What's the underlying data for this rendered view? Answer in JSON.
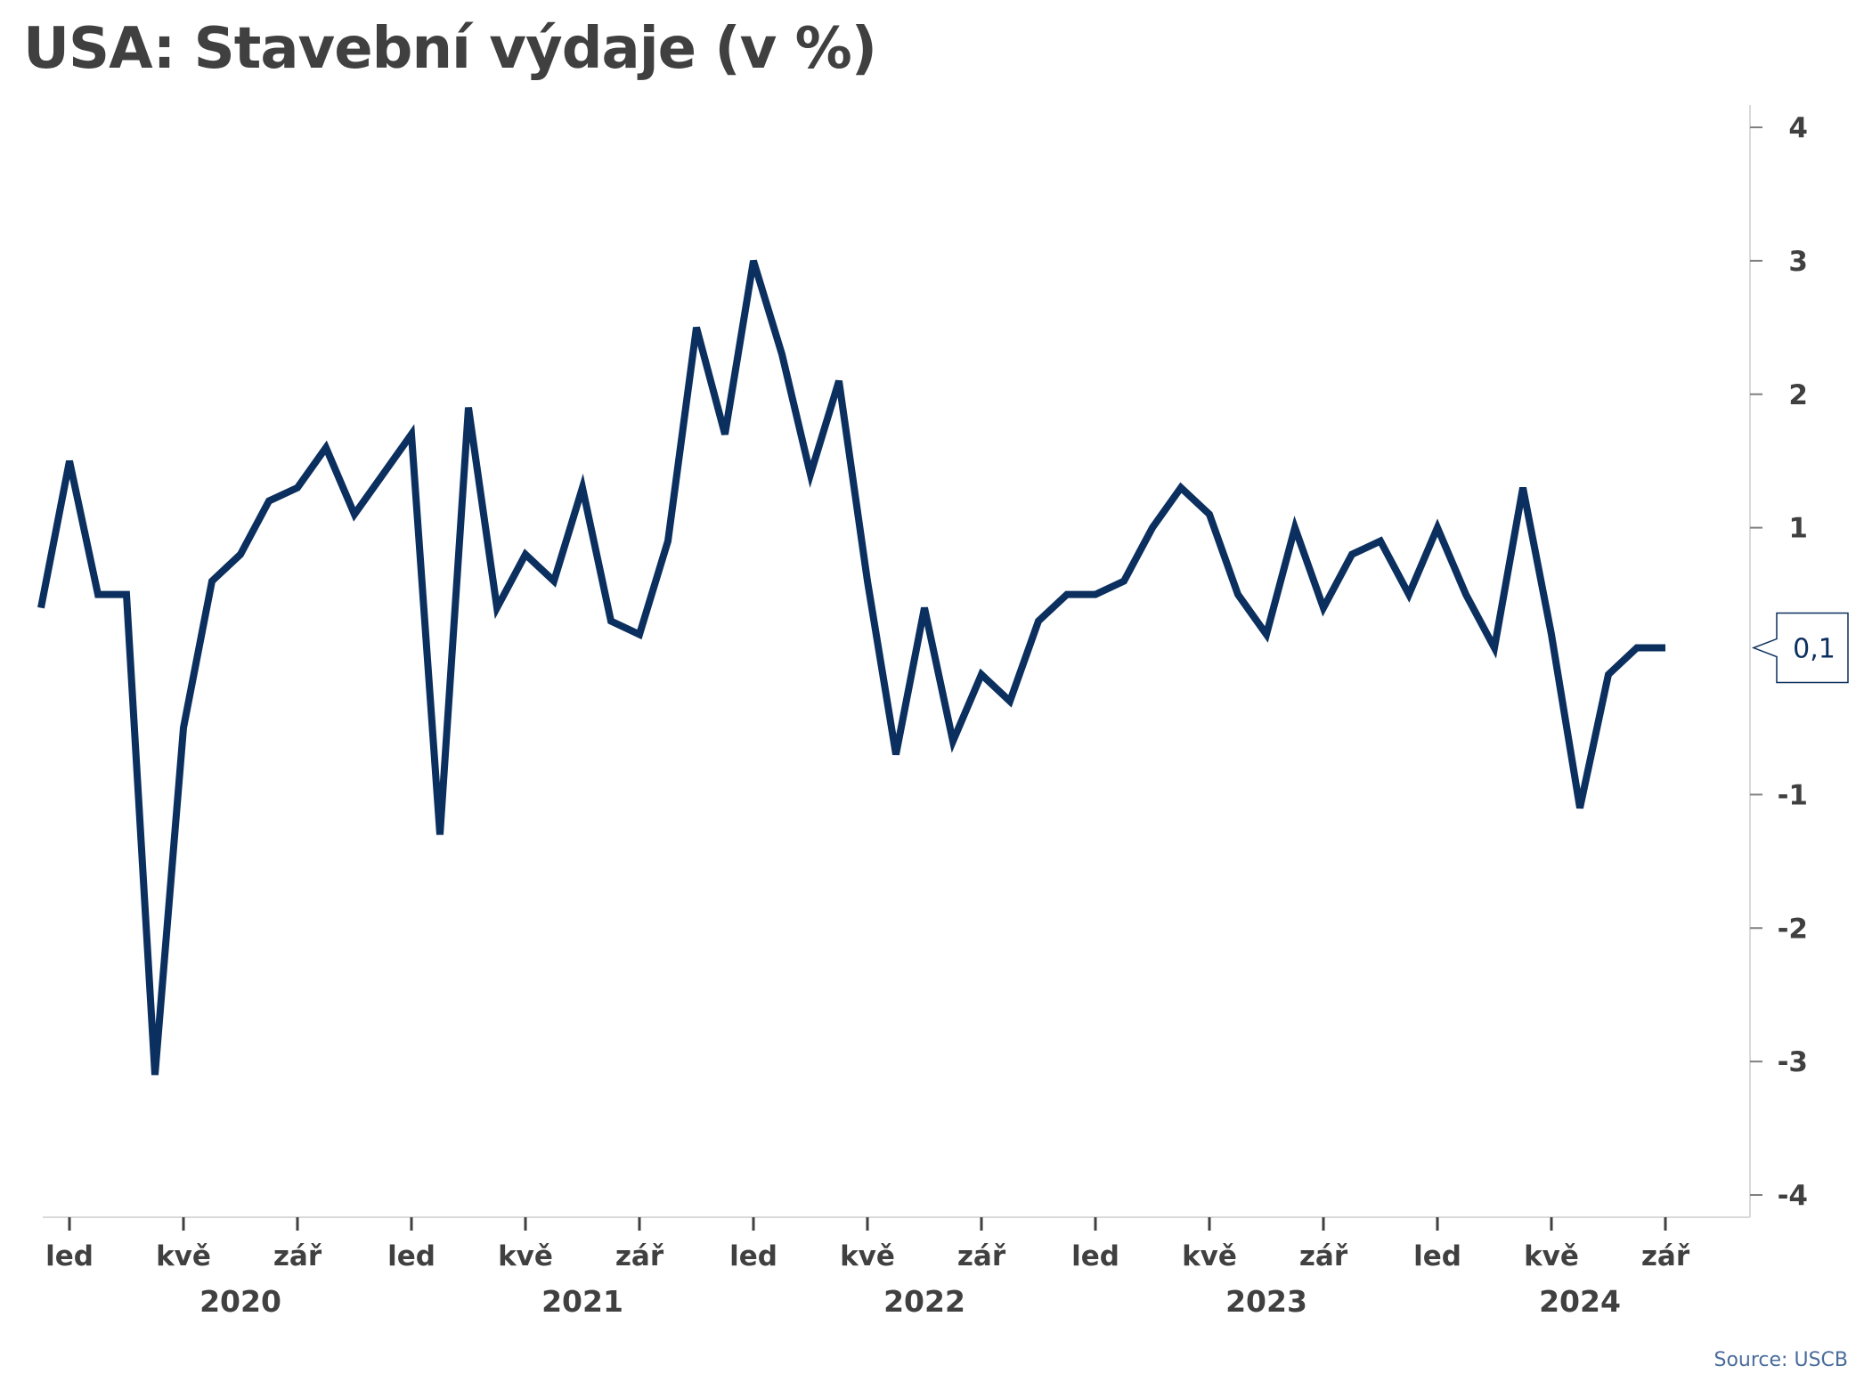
{
  "title": "USA: Stavební výdaje (v %)",
  "source": "Source: USCB",
  "colors": {
    "line": "#0b2f5e",
    "text": "#404040",
    "axis": "#d9d9d9",
    "source": "#4a6c9b"
  },
  "chart_data": {
    "type": "line",
    "title": "USA: Stavební výdaje (v %)",
    "xlabel": "",
    "ylabel": "",
    "ylim": [
      -4,
      4
    ],
    "y_ticks": [
      4,
      3,
      2,
      1,
      -1,
      -2,
      -3,
      -4
    ],
    "y_axis_side": "right",
    "grid": false,
    "x_start": "2019-12",
    "x_end": "2024-09",
    "x_tick_labels": [
      {
        "month": "2020-01",
        "label": "led"
      },
      {
        "month": "2020-05",
        "label": "kvě"
      },
      {
        "month": "2020-09",
        "label": "zář"
      },
      {
        "month": "2021-01",
        "label": "led"
      },
      {
        "month": "2021-05",
        "label": "kvě"
      },
      {
        "month": "2021-09",
        "label": "zář"
      },
      {
        "month": "2022-01",
        "label": "led"
      },
      {
        "month": "2022-05",
        "label": "kvě"
      },
      {
        "month": "2022-09",
        "label": "zář"
      },
      {
        "month": "2023-01",
        "label": "led"
      },
      {
        "month": "2023-05",
        "label": "kvě"
      },
      {
        "month": "2023-09",
        "label": "zář"
      },
      {
        "month": "2024-01",
        "label": "led"
      },
      {
        "month": "2024-05",
        "label": "kvě"
      },
      {
        "month": "2024-09",
        "label": "zář"
      }
    ],
    "year_labels": [
      {
        "label": "2020",
        "month": "2020-07"
      },
      {
        "label": "2021",
        "month": "2021-07"
      },
      {
        "label": "2022",
        "month": "2022-07"
      },
      {
        "label": "2023",
        "month": "2023-07"
      },
      {
        "label": "2024",
        "month": "2024-06"
      }
    ],
    "series": [
      {
        "values": [
          {
            "x": "2019-12",
            "y": 0.4
          },
          {
            "x": "2020-01",
            "y": 1.5
          },
          {
            "x": "2020-02",
            "y": 0.5
          },
          {
            "x": "2020-03",
            "y": 0.5
          },
          {
            "x": "2020-04",
            "y": -3.1
          },
          {
            "x": "2020-05",
            "y": -0.5
          },
          {
            "x": "2020-06",
            "y": 0.6
          },
          {
            "x": "2020-07",
            "y": 0.8
          },
          {
            "x": "2020-08",
            "y": 1.2
          },
          {
            "x": "2020-09",
            "y": 1.3
          },
          {
            "x": "2020-10",
            "y": 1.6
          },
          {
            "x": "2020-11",
            "y": 1.1
          },
          {
            "x": "2020-12",
            "y": 1.4
          },
          {
            "x": "2021-01",
            "y": 1.7
          },
          {
            "x": "2021-02",
            "y": -1.3
          },
          {
            "x": "2021-03",
            "y": 1.9
          },
          {
            "x": "2021-04",
            "y": 0.4
          },
          {
            "x": "2021-05",
            "y": 0.8
          },
          {
            "x": "2021-06",
            "y": 0.6
          },
          {
            "x": "2021-07",
            "y": 1.3
          },
          {
            "x": "2021-08",
            "y": 0.3
          },
          {
            "x": "2021-09",
            "y": 0.2
          },
          {
            "x": "2021-10",
            "y": 0.9
          },
          {
            "x": "2021-11",
            "y": 2.5
          },
          {
            "x": "2021-12",
            "y": 1.7
          },
          {
            "x": "2022-01",
            "y": 3.0
          },
          {
            "x": "2022-02",
            "y": 2.3
          },
          {
            "x": "2022-03",
            "y": 1.4
          },
          {
            "x": "2022-04",
            "y": 2.1
          },
          {
            "x": "2022-05",
            "y": 0.6
          },
          {
            "x": "2022-06",
            "y": -0.7
          },
          {
            "x": "2022-07",
            "y": 0.4
          },
          {
            "x": "2022-08",
            "y": -0.6
          },
          {
            "x": "2022-09",
            "y": -0.1
          },
          {
            "x": "2022-10",
            "y": -0.3
          },
          {
            "x": "2022-11",
            "y": 0.3
          },
          {
            "x": "2022-12",
            "y": 0.5
          },
          {
            "x": "2023-01",
            "y": 0.5
          },
          {
            "x": "2023-02",
            "y": 0.6
          },
          {
            "x": "2023-03",
            "y": 1.0
          },
          {
            "x": "2023-04",
            "y": 1.3
          },
          {
            "x": "2023-05",
            "y": 1.1
          },
          {
            "x": "2023-06",
            "y": 0.5
          },
          {
            "x": "2023-07",
            "y": 0.2
          },
          {
            "x": "2023-08",
            "y": 1.0
          },
          {
            "x": "2023-09",
            "y": 0.4
          },
          {
            "x": "2023-10",
            "y": 0.8
          },
          {
            "x": "2023-11",
            "y": 0.9
          },
          {
            "x": "2023-12",
            "y": 0.5
          },
          {
            "x": "2024-01",
            "y": 1.0
          },
          {
            "x": "2024-02",
            "y": 0.5
          },
          {
            "x": "2024-03",
            "y": 0.1
          },
          {
            "x": "2024-04",
            "y": 1.3
          },
          {
            "x": "2024-05",
            "y": 0.2
          },
          {
            "x": "2024-06",
            "y": -1.1
          },
          {
            "x": "2024-07",
            "y": -0.1
          },
          {
            "x": "2024-08",
            "y": 0.1
          },
          {
            "x": "2024-09",
            "y": 0.1
          }
        ]
      }
    ],
    "last_value_label": "0,1"
  }
}
